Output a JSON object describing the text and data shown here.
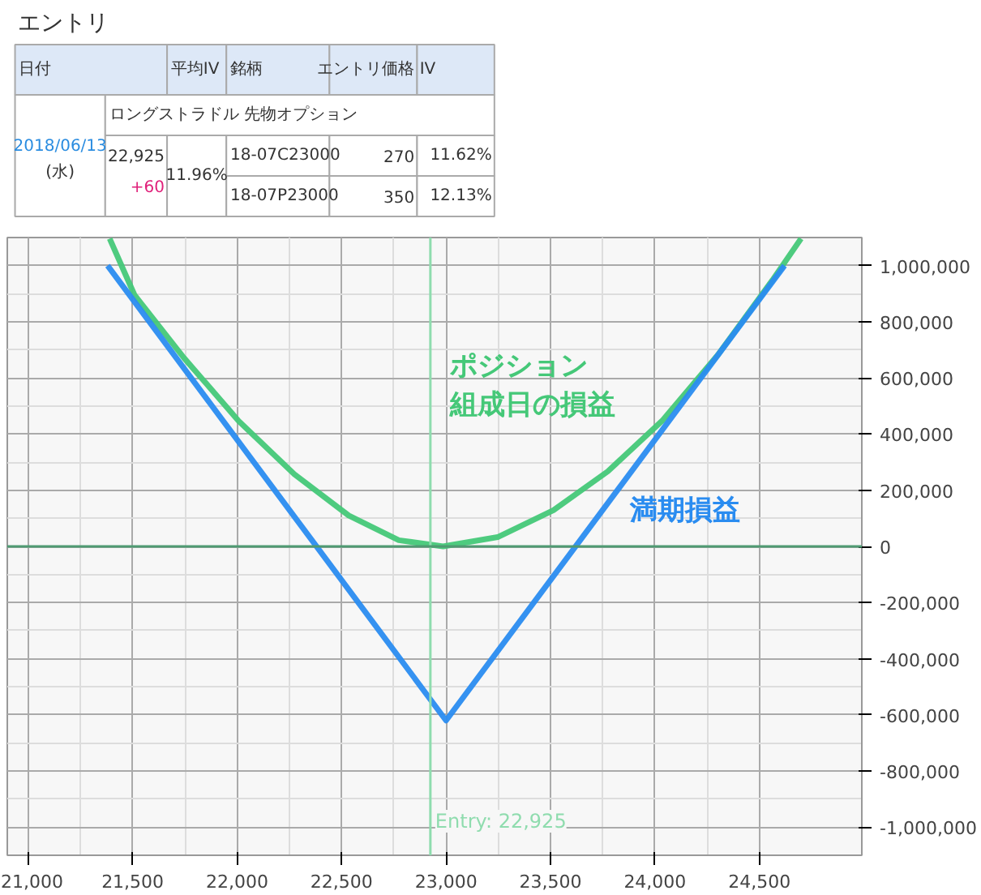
{
  "chart_data": [
    {
      "type": "other",
      "title": "エントリ",
      "annotations": [
        "日付",
        "平均IV",
        "銘柄",
        "エントリ価格",
        "IV",
        "2018/06/13",
        "(水)",
        "22,925",
        "+60",
        "11.96%",
        "ロングストラドル 先物オプション",
        "18-07C23000",
        "270",
        "11.62%",
        "18-07P23000",
        "350",
        "12.13%"
      ]
    },
    {
      "type": "line",
      "series": [
        {
          "name": "ポジション組成日の損益",
          "color": "#45c878",
          "x": [
            21390,
            21509,
            21746,
            22007,
            22274,
            22534,
            22774,
            22986,
            23247,
            23514,
            23774,
            24034,
            24301,
            24562,
            24699
          ],
          "values": [
            1096000,
            895000,
            671000,
            447000,
            257000,
            110000,
            22000,
            0,
            33000,
            129000,
            267000,
            447000,
            682000,
            948000,
            1096000
          ]
        },
        {
          "name": "満期損益",
          "color": "#2a8cf0",
          "x": [
            21380,
            23000,
            24620
          ],
          "values": [
            1000000,
            -620000,
            1000000
          ]
        }
      ],
      "xlim": [
        20900,
        24990
      ],
      "ylim": [
        -1100000,
        1100000
      ],
      "xticks": [
        {
          "value": 21000,
          "label": "21,000"
        },
        {
          "value": 21500,
          "label": "21,500"
        },
        {
          "value": 22000,
          "label": "22,000"
        },
        {
          "value": 22500,
          "label": "22,500"
        },
        {
          "value": 23000,
          "label": "23,000"
        },
        {
          "value": 23500,
          "label": "23,500"
        },
        {
          "value": 24000,
          "label": "24,000"
        },
        {
          "value": 24500,
          "label": "24,500"
        }
      ],
      "yticks": [
        {
          "value": -1000000,
          "label": "-1,000,000"
        },
        {
          "value": -800000,
          "label": "-800,000"
        },
        {
          "value": -600000,
          "label": "-600,000"
        },
        {
          "value": -400000,
          "label": "-400,000"
        },
        {
          "value": -200000,
          "label": "-200,000"
        },
        0,
        {
          "value": 200000,
          "label": "200,000"
        },
        {
          "value": 400000,
          "label": "400,000"
        },
        {
          "value": 600000,
          "label": "600,000"
        },
        {
          "value": 800000,
          "label": "800,000"
        },
        {
          "value": 1000000,
          "label": "1,000,000"
        }
      ],
      "grid": true,
      "ref_lines": [
        {
          "axis": "x",
          "value": 22925,
          "label": "Entry: 22,925",
          "color": "#8fdcae"
        },
        {
          "axis": "y",
          "value": 0,
          "color": "#4f9a72"
        }
      ]
    }
  ]
}
